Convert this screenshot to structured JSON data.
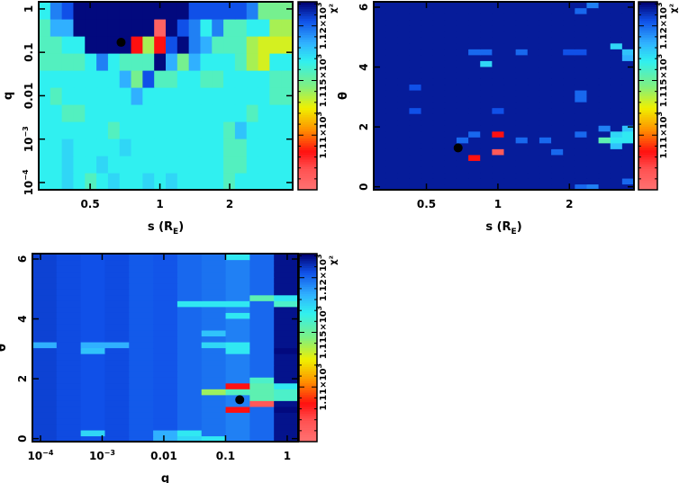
{
  "colormap": {
    "stops": [
      [
        1105,
        "#ff7373"
      ],
      [
        1107,
        "#ff5050"
      ],
      [
        1108.5,
        "#ff1010"
      ],
      [
        1110.5,
        "#ff9000"
      ],
      [
        1112.5,
        "#f0f000"
      ],
      [
        1114.5,
        "#80f080"
      ],
      [
        1116.8,
        "#30f0f0"
      ],
      [
        1118.5,
        "#30b0ff"
      ],
      [
        1120.5,
        "#1050e8"
      ],
      [
        1122.2,
        "#000070"
      ]
    ],
    "range": [
      1105,
      1122.2
    ],
    "label": "χ²",
    "ticks": [
      {
        "v": 1110,
        "text": "1.11×10",
        "exp": "3"
      },
      {
        "v": 1115,
        "text": "1.115×10",
        "exp": "3"
      },
      {
        "v": 1120,
        "text": "1.12×10",
        "exp": "3"
      }
    ]
  },
  "marker_color": "#000000",
  "chart_data": [
    {
      "type": "heatmap",
      "title": "",
      "xlabel": "s (R",
      "xlabel_sub": "E",
      "xlabel_end": ")",
      "ylabel": "q",
      "xscale": "log",
      "yscale": "log",
      "xlim": [
        0.3,
        3.74
      ],
      "ylim": [
        6.8e-05,
        1.46
      ],
      "xticks": [
        {
          "v": 0.5,
          "text": "0.5"
        },
        {
          "v": 1,
          "text": "1"
        },
        {
          "v": 2,
          "text": "2"
        }
      ],
      "yticks": [
        {
          "v": 1,
          "text": "1"
        },
        {
          "v": 0.1,
          "text": "0.1"
        },
        {
          "v": 0.01,
          "text": "0.01"
        },
        {
          "v": 0.001,
          "text": "10",
          "exp": "−3"
        },
        {
          "v": 0.0001,
          "text": "10",
          "exp": "−4"
        }
      ],
      "best_fit": {
        "x": 0.68,
        "y": 0.17
      },
      "grid_rows_top_to_bottom": [
        [
          1116.8,
          1119.5,
          1120.5,
          1122,
          1122,
          1122,
          1122,
          1122,
          1122,
          1122,
          1122,
          1122,
          1122,
          1120.5,
          1120.5,
          1120.5,
          1120.5,
          1120.5,
          1119.5,
          1114.8,
          1114.8,
          1114.8
        ],
        [
          1115.8,
          1118.5,
          1118.5,
          1122,
          1122,
          1122,
          1122,
          1122,
          1122,
          1122,
          1106,
          1122,
          1120.5,
          1119.5,
          1116.8,
          1119.5,
          1115.8,
          1115.8,
          1116.8,
          1116.8,
          1113.8,
          1113.8
        ],
        [
          1115.8,
          1115.8,
          1116.8,
          1116.8,
          1122,
          1122,
          1122,
          1122,
          1108.5,
          1113.8,
          1108.5,
          1120.5,
          1122,
          1119.5,
          1118.5,
          1115.8,
          1115.8,
          1115.8,
          1113.8,
          1113,
          1113,
          1113
        ],
        [
          1115.8,
          1115.8,
          1115.8,
          1115.8,
          1116.8,
          1119.5,
          1116.8,
          1115.8,
          1115.8,
          1115.8,
          1122,
          1118.5,
          1114.8,
          1118.5,
          1116.8,
          1116.8,
          1116.8,
          1115.8,
          1113.8,
          1113,
          1116.8,
          1116.8
        ],
        [
          1116.8,
          1116.8,
          1116.8,
          1116.8,
          1116.8,
          1116.8,
          1116.8,
          1118.5,
          1114.8,
          1120.5,
          1115.8,
          1115.8,
          1116.8,
          1116.8,
          1115.8,
          1115.8,
          1116.8,
          1116.8,
          1116.8,
          1116.8,
          1115.8,
          1115.8
        ],
        [
          1116.8,
          1115.8,
          1116.8,
          1116.8,
          1116.8,
          1116.8,
          1116.8,
          1116.8,
          1118.5,
          1116.8,
          1116.8,
          1116.8,
          1116.8,
          1116.8,
          1116.8,
          1116.8,
          1116.8,
          1116.8,
          1116.8,
          1116.8,
          1115.8,
          1115.8
        ],
        [
          1116.8,
          1116.8,
          1115.8,
          1115.8,
          1116.8,
          1116.8,
          1116.8,
          1116.8,
          1116.8,
          1116.8,
          1116.8,
          1116.8,
          1116.8,
          1116.8,
          1116.8,
          1116.8,
          1116.8,
          1116.8,
          1115.8,
          1116.8,
          1116.8,
          1116.8
        ],
        [
          1116.8,
          1116.8,
          1116.8,
          1116.8,
          1116.8,
          1116.8,
          1115.8,
          1116.8,
          1116.8,
          1116.8,
          1116.8,
          1116.8,
          1116.8,
          1116.8,
          1116.8,
          1116.8,
          1115.8,
          1118,
          1116.8,
          1116.8,
          1116.8,
          1116.8
        ],
        [
          1116.8,
          1116.8,
          1117.5,
          1116.8,
          1116.8,
          1116.8,
          1116.8,
          1117.5,
          1116.8,
          1116.8,
          1116.8,
          1116.8,
          1116.8,
          1116.8,
          1116.8,
          1116.8,
          1115.8,
          1115.8,
          1116.8,
          1116.8,
          1116.8,
          1116.8
        ],
        [
          1116.8,
          1116.8,
          1117.5,
          1116.8,
          1116.8,
          1117.5,
          1116.8,
          1116.8,
          1116.8,
          1116.8,
          1116.8,
          1116.8,
          1116.8,
          1116.8,
          1116.8,
          1116.8,
          1115.8,
          1115.8,
          1116.8,
          1116.8,
          1116.8,
          1116.8
        ],
        [
          1116.8,
          1116.8,
          1117.5,
          1116.8,
          1115.8,
          1116.8,
          1117.5,
          1116.8,
          1116.8,
          1117.5,
          1116.8,
          1117.5,
          1116.8,
          1116.8,
          1116.8,
          1116.8,
          1115.8,
          1116.8,
          1116.8,
          1116.8,
          1116.8,
          1116.8
        ]
      ]
    },
    {
      "type": "heatmap",
      "xlabel": "s (R",
      "xlabel_sub": "E",
      "xlabel_end": ")",
      "ylabel": "θ",
      "xscale": "log",
      "yscale": "linear",
      "xlim": [
        0.3,
        3.74
      ],
      "ylim": [
        -0.1,
        6.18
      ],
      "xticks": [
        {
          "v": 0.5,
          "text": "0.5"
        },
        {
          "v": 1,
          "text": "1"
        },
        {
          "v": 2,
          "text": "2"
        }
      ],
      "yticks": [
        {
          "v": 0,
          "text": "0"
        },
        {
          "v": 2,
          "text": "2"
        },
        {
          "v": 4,
          "text": "4"
        },
        {
          "v": 6,
          "text": "6"
        }
      ],
      "best_fit": {
        "x": 0.68,
        "y": 1.3
      },
      "ncols": 22,
      "nrows": 32,
      "base_value": 1121.6,
      "cells": [
        [
          8,
          5,
          1108.5
        ],
        [
          10,
          9,
          1108.5
        ],
        [
          10,
          6,
          1106.5
        ],
        [
          9,
          21,
          1117.5
        ],
        [
          19,
          8,
          1115.5
        ],
        [
          20,
          8,
          1117
        ],
        [
          21,
          8,
          1117
        ],
        [
          20,
          9,
          1117.5
        ],
        [
          21,
          9,
          1117
        ],
        [
          20,
          7,
          1118
        ],
        [
          21,
          10,
          1118
        ],
        [
          19,
          10,
          1119.5
        ],
        [
          20,
          24,
          1117.5
        ],
        [
          21,
          23,
          1118
        ],
        [
          21,
          22,
          1118.5
        ],
        [
          17,
          9,
          1120
        ],
        [
          17,
          15,
          1120
        ],
        [
          17,
          16,
          1120
        ],
        [
          15,
          6,
          1120
        ],
        [
          14,
          8,
          1120
        ],
        [
          7,
          8,
          1120
        ],
        [
          8,
          9,
          1120
        ],
        [
          12,
          8,
          1120
        ],
        [
          8,
          23,
          1120
        ],
        [
          9,
          23,
          1120
        ],
        [
          12,
          23,
          1120
        ],
        [
          3,
          17,
          1120.5
        ],
        [
          3,
          13,
          1120.5
        ],
        [
          17,
          0,
          1120
        ],
        [
          18,
          0,
          1119.5
        ],
        [
          21,
          1,
          1120
        ],
        [
          17,
          30,
          1120
        ],
        [
          18,
          31,
          1119.5
        ],
        [
          16,
          23,
          1120.5
        ],
        [
          17,
          23,
          1120.5
        ],
        [
          10,
          13,
          1120.5
        ]
      ]
    },
    {
      "type": "heatmap",
      "xlabel": "q",
      "ylabel": "θ",
      "xscale": "log",
      "yscale": "linear",
      "xlim": [
        7.4e-05,
        1.5
      ],
      "ylim": [
        -0.1,
        6.18
      ],
      "xticks": [
        {
          "v": 0.0001,
          "text": "10",
          "exp": "−4"
        },
        {
          "v": 0.001,
          "text": "10",
          "exp": "−3"
        },
        {
          "v": 0.01,
          "text": "0.01"
        },
        {
          "v": 0.1,
          "text": "0.1"
        },
        {
          "v": 1,
          "text": "1"
        }
      ],
      "yticks": [
        {
          "v": 0,
          "text": "0"
        },
        {
          "v": 2,
          "text": "2"
        },
        {
          "v": 4,
          "text": "4"
        },
        {
          "v": 6,
          "text": "6"
        }
      ],
      "best_fit": {
        "x": 0.17,
        "y": 1.3
      },
      "ncols": 11,
      "nrows": 32,
      "column_base_values": [
        1120.8,
        1120.6,
        1120.5,
        1120.6,
        1120.3,
        1120.4,
        1120,
        1119.8,
        1119.5,
        1120,
        1121.8
      ],
      "cells": [
        [
          8,
          9,
          1108.5
        ],
        [
          8,
          5,
          1108.5
        ],
        [
          9,
          6,
          1106.5
        ],
        [
          7,
          8,
          1114
        ],
        [
          8,
          8,
          1115.8
        ],
        [
          9,
          7,
          1115.5
        ],
        [
          9,
          8,
          1115.5
        ],
        [
          9,
          9,
          1115.5
        ],
        [
          9,
          10,
          1116
        ],
        [
          10,
          7,
          1116
        ],
        [
          10,
          8,
          1116
        ],
        [
          10,
          9,
          1117
        ],
        [
          6,
          23,
          1117
        ],
        [
          7,
          23,
          1117
        ],
        [
          8,
          23,
          1117
        ],
        [
          9,
          24,
          1115.5
        ],
        [
          10,
          24,
          1117
        ],
        [
          10,
          23,
          1116
        ],
        [
          8,
          21,
          1117
        ],
        [
          8,
          16,
          1117
        ],
        [
          8,
          15,
          1117
        ],
        [
          7,
          18,
          1118
        ],
        [
          7,
          16,
          1117.5
        ],
        [
          0,
          16,
          1118.5
        ],
        [
          2,
          16,
          1118.5
        ],
        [
          3,
          16,
          1118.5
        ],
        [
          2,
          15,
          1118
        ],
        [
          6,
          0,
          1117.5
        ],
        [
          6,
          1,
          1117
        ],
        [
          7,
          0,
          1117
        ],
        [
          8,
          31,
          1117
        ],
        [
          5,
          0,
          1118.5
        ],
        [
          5,
          1,
          1118.5
        ],
        [
          2,
          1,
          1117.5
        ],
        [
          10,
          5,
          1122
        ],
        [
          10,
          15,
          1122
        ]
      ]
    }
  ]
}
